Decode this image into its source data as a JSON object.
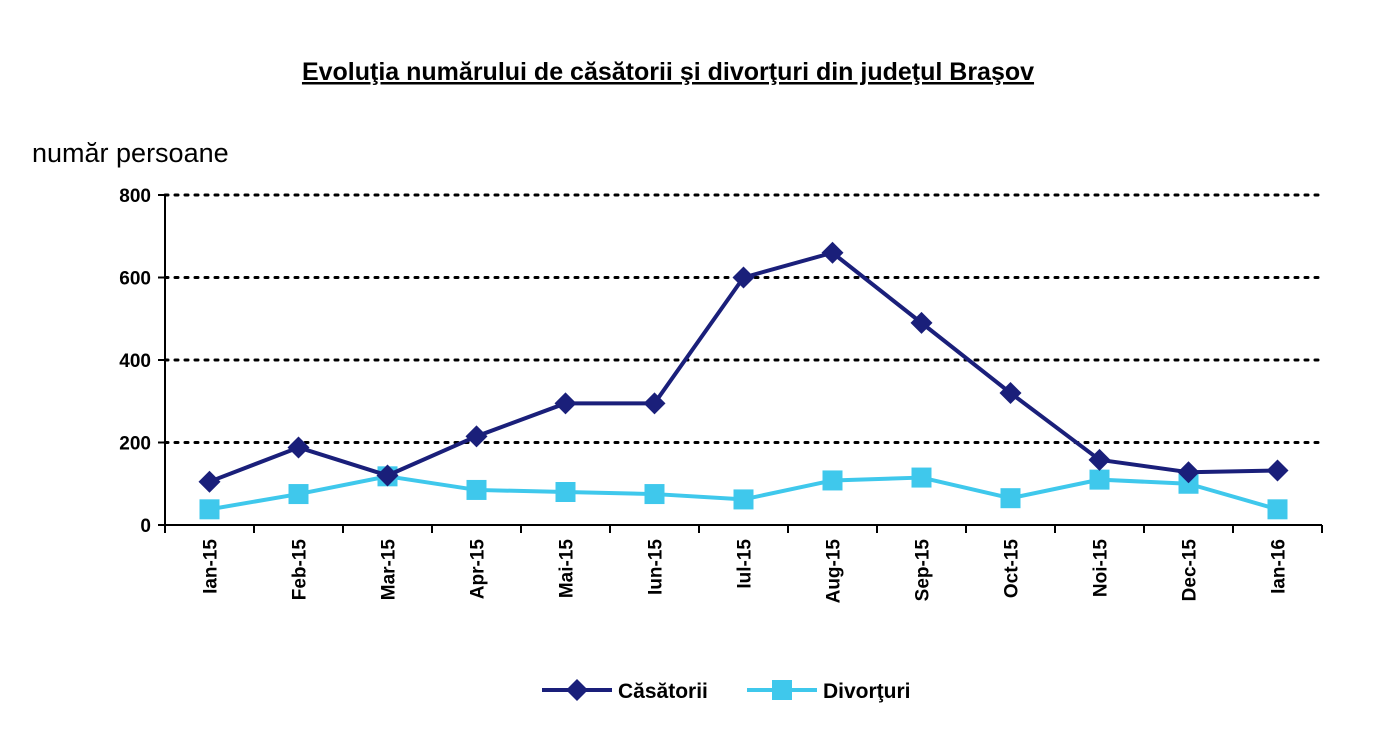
{
  "chart_data": {
    "type": "line",
    "title": "Evoluţia numărului de căsătorii şi divorţuri din judeţul Braşov",
    "ylabel": "număr persoane",
    "xlabel": "",
    "ylim": [
      0,
      800
    ],
    "yticks": [
      0,
      200,
      400,
      600,
      800
    ],
    "grid": "horizontal-dotted",
    "legend_position": "bottom",
    "categories": [
      "Ian-15",
      "Feb-15",
      "Mar-15",
      "Apr-15",
      "Mai-15",
      "Iun-15",
      "Iul-15",
      "Aug-15",
      "Sep-15",
      "Oct-15",
      "Noi-15",
      "Dec-15",
      "Ian-16"
    ],
    "series": [
      {
        "name": "Căsătorii",
        "marker": "diamond",
        "color": "#1a1f7a",
        "values": [
          105,
          188,
          120,
          215,
          295,
          295,
          600,
          660,
          490,
          320,
          158,
          128,
          132
        ]
      },
      {
        "name": "Divorţuri",
        "marker": "square",
        "color": "#3fc8ec",
        "values": [
          38,
          75,
          118,
          85,
          80,
          75,
          62,
          108,
          115,
          65,
          110,
          100,
          38
        ]
      }
    ]
  }
}
